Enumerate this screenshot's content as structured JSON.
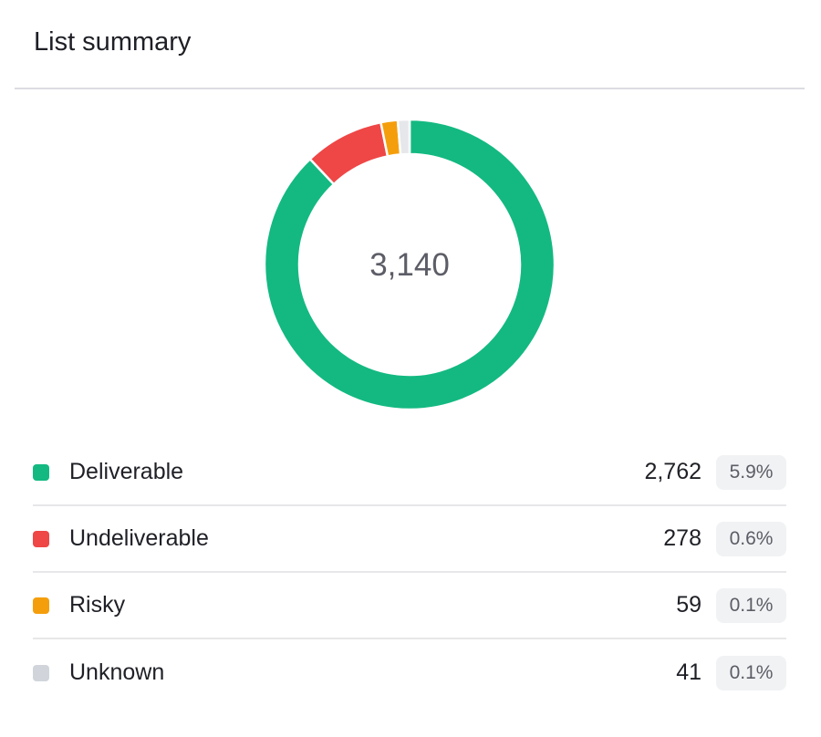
{
  "title": "List summary",
  "chart_data": {
    "type": "pie",
    "variant": "donut",
    "total_label": "3,140",
    "categories": [
      "Deliverable",
      "Undeliverable",
      "Risky",
      "Unknown"
    ],
    "values": [
      2762,
      278,
      59,
      41
    ],
    "counts_label": [
      "2,762",
      "278",
      "59",
      "41"
    ],
    "percent_labels": [
      "5.9%",
      "0.6%",
      "0.1%",
      "0.1%"
    ],
    "colors": [
      "#13b981",
      "#ef4646",
      "#f59e0b",
      "#e5e7eb"
    ],
    "legend_colors": [
      "#13b981",
      "#ef4646",
      "#f59e0b",
      "#d1d5db"
    ],
    "legend": "bottom"
  }
}
